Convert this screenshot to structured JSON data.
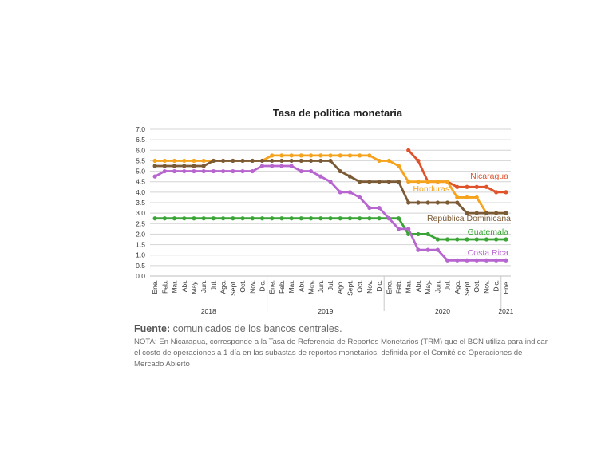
{
  "chart_data": {
    "type": "line",
    "title": "Tasa de política monetaria",
    "ylim": [
      0,
      7
    ],
    "yticks": [
      "0.0",
      "0.5",
      "1.0",
      "1.5",
      "2.0",
      "2.5",
      "3.0",
      "3.5",
      "4.0",
      "4.5",
      "5.0",
      "5.5",
      "6.0",
      "6.5",
      "7.0"
    ],
    "grid": true,
    "x": [
      "Ene.",
      "Feb.",
      "Mar.",
      "Abr.",
      "May.",
      "Jun.",
      "Jul.",
      "Ago.",
      "Sept.",
      "Oct.",
      "Nov.",
      "Dic.",
      "Ene.",
      "Feb.",
      "Mar.",
      "Abr.",
      "May.",
      "Jun.",
      "Jul.",
      "Ago.",
      "Sept.",
      "Oct.",
      "Nov.",
      "Dic.",
      "Ene.",
      "Feb.",
      "Mar.",
      "Abr.",
      "May.",
      "Jun.",
      "Jul.",
      "Ago.",
      "Sept.",
      "Oct.",
      "Nov.",
      "Dic.",
      "Ene."
    ],
    "years": [
      {
        "label": "2018",
        "start": 0,
        "end": 11
      },
      {
        "label": "2019",
        "start": 12,
        "end": 23
      },
      {
        "label": "2020",
        "start": 24,
        "end": 35
      },
      {
        "label": "2021",
        "start": 36,
        "end": 36
      }
    ],
    "series": [
      {
        "name": "Nicaragua",
        "color": "#e0522a",
        "values": [
          null,
          null,
          null,
          null,
          null,
          null,
          null,
          null,
          null,
          null,
          null,
          null,
          null,
          null,
          null,
          null,
          null,
          null,
          null,
          null,
          null,
          null,
          null,
          null,
          null,
          null,
          6.0,
          5.5,
          4.5,
          4.5,
          4.5,
          4.25,
          4.25,
          4.25,
          4.25,
          4.0,
          4.0
        ]
      },
      {
        "name": "Honduras",
        "color": "#f5a31c",
        "values": [
          5.5,
          5.5,
          5.5,
          5.5,
          5.5,
          5.5,
          5.5,
          5.5,
          5.5,
          5.5,
          5.5,
          5.5,
          5.75,
          5.75,
          5.75,
          5.75,
          5.75,
          5.75,
          5.75,
          5.75,
          5.75,
          5.75,
          5.75,
          5.5,
          5.5,
          5.25,
          4.5,
          4.5,
          4.5,
          4.5,
          4.5,
          3.75,
          3.75,
          3.75,
          3.0,
          3.0,
          3.0
        ]
      },
      {
        "name": "República Dominicana",
        "color": "#7b5a36",
        "values": [
          5.25,
          5.25,
          5.25,
          5.25,
          5.25,
          5.25,
          5.5,
          5.5,
          5.5,
          5.5,
          5.5,
          5.5,
          5.5,
          5.5,
          5.5,
          5.5,
          5.5,
          5.5,
          5.5,
          5.0,
          4.75,
          4.5,
          4.5,
          4.5,
          4.5,
          4.5,
          3.5,
          3.5,
          3.5,
          3.5,
          3.5,
          3.5,
          3.0,
          3.0,
          3.0,
          3.0,
          3.0
        ]
      },
      {
        "name": "Guatemala",
        "color": "#3aa536",
        "values": [
          2.75,
          2.75,
          2.75,
          2.75,
          2.75,
          2.75,
          2.75,
          2.75,
          2.75,
          2.75,
          2.75,
          2.75,
          2.75,
          2.75,
          2.75,
          2.75,
          2.75,
          2.75,
          2.75,
          2.75,
          2.75,
          2.75,
          2.75,
          2.75,
          2.75,
          2.75,
          2.0,
          2.0,
          2.0,
          1.75,
          1.75,
          1.75,
          1.75,
          1.75,
          1.75,
          1.75,
          1.75
        ]
      },
      {
        "name": "Costa Rica",
        "color": "#b765cf",
        "values": [
          4.75,
          5.0,
          5.0,
          5.0,
          5.0,
          5.0,
          5.0,
          5.0,
          5.0,
          5.0,
          5.0,
          5.25,
          5.25,
          5.25,
          5.25,
          5.0,
          5.0,
          4.75,
          4.5,
          4.0,
          4.0,
          3.75,
          3.25,
          3.25,
          2.75,
          2.25,
          2.25,
          1.25,
          1.25,
          1.25,
          0.75,
          0.75,
          0.75,
          0.75,
          0.75,
          0.75,
          0.75
        ]
      }
    ]
  },
  "source": {
    "label": "Fuente:",
    "text": " comunicados de los bancos centrales.",
    "note": "NOTA: En Nicaragua, corresponde a la Tasa de Referencia de Reportos Monetarios (TRM) que el BCN utiliza para indicar el costo de operaciones a 1 día en las subastas de reportos monetarios, definida por el Comité de Operaciones de Mercado Abierto"
  }
}
